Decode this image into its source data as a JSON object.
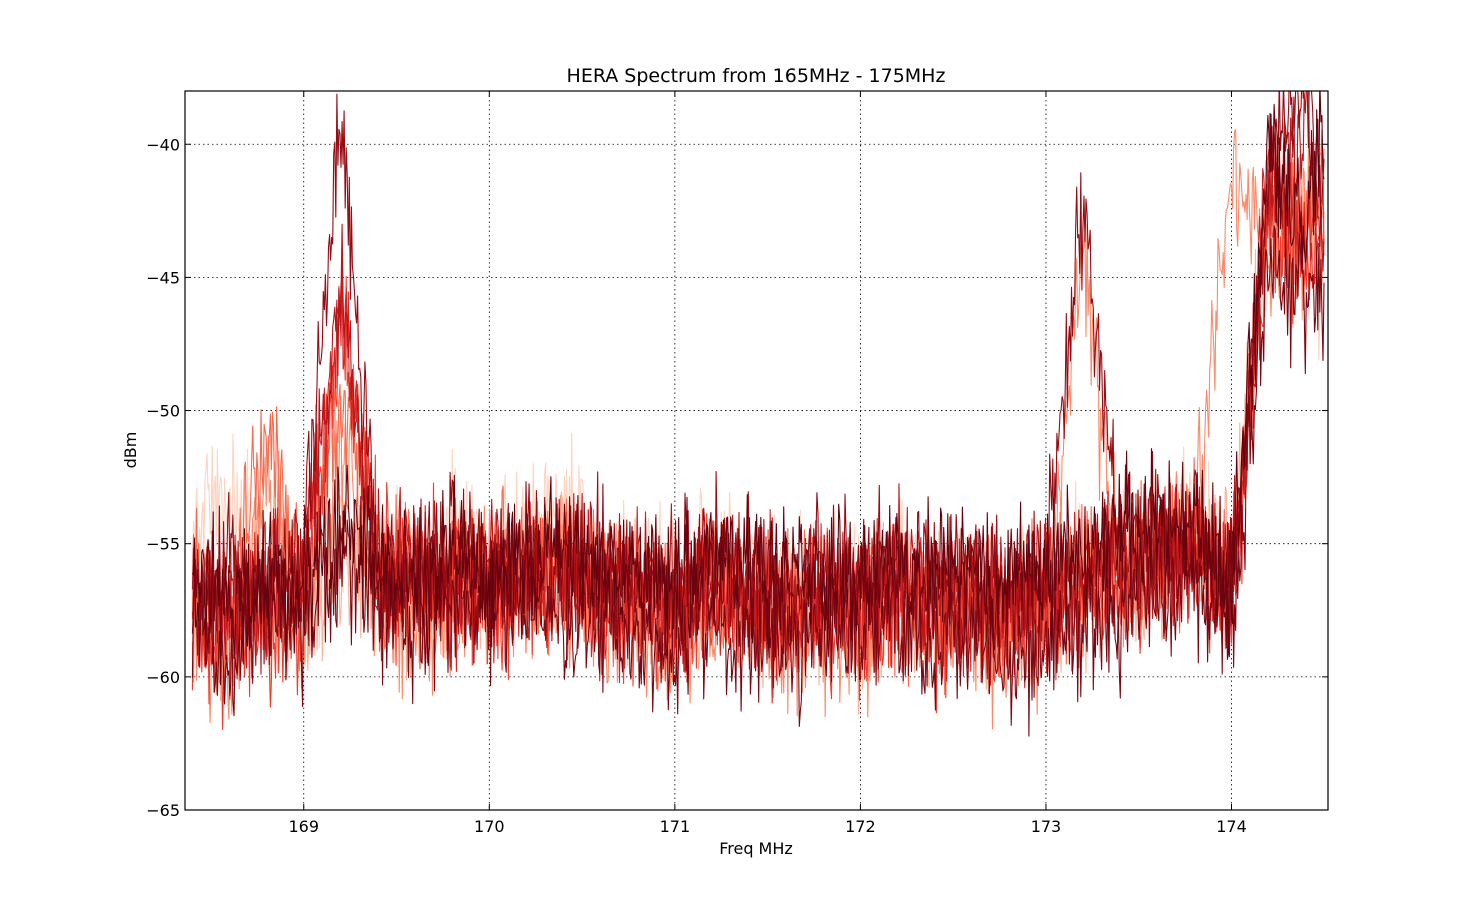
{
  "chart_data": {
    "type": "line",
    "title": "HERA Spectrum from 165MHz - 175MHz",
    "xlabel": "Freq MHz",
    "ylabel": "dBm",
    "xlim": [
      168.36,
      174.52
    ],
    "ylim": [
      -65,
      -38
    ],
    "xticks": [
      169,
      170,
      171,
      172,
      173,
      174
    ],
    "xtick_labels": [
      "169",
      "170",
      "171",
      "172",
      "173",
      "174"
    ],
    "yticks": [
      -40,
      -45,
      -50,
      -55,
      -60,
      -65
    ],
    "ytick_labels": [
      "−40",
      "−45",
      "−50",
      "−55",
      "−60",
      "−65"
    ],
    "grid": true,
    "legend": "none",
    "series_colors": [
      "#fdd4c2",
      "#fcb398",
      "#fc8a6a",
      "#f9694c",
      "#ef3c2c",
      "#d52221",
      "#b81419",
      "#970b13",
      "#7b0712",
      "#67000d"
    ],
    "series": [
      {
        "color": "#fdd4c2",
        "x": [
          168.4,
          168.6,
          168.8,
          169.0,
          169.2,
          169.4,
          169.6,
          169.8,
          170.0,
          170.2,
          170.4,
          170.6,
          170.8,
          171.0,
          171.2,
          171.4,
          171.6,
          171.8,
          172.0,
          172.2,
          172.4,
          172.6,
          172.8,
          173.0,
          173.2,
          173.4,
          173.6,
          173.8,
          174.0,
          174.2,
          174.4,
          174.5
        ],
        "y": [
          -54.5,
          -53.0,
          -56.5,
          -57.5,
          -55.0,
          -55.5,
          -56.0,
          -54.5,
          -55.5,
          -54.0,
          -53.5,
          -56.0,
          -55.5,
          -57.0,
          -55.5,
          -56.0,
          -57.0,
          -56.5,
          -57.0,
          -56.0,
          -57.0,
          -56.5,
          -57.0,
          -56.5,
          -56.0,
          -55.5,
          -55.0,
          -54.0,
          -56.0,
          -44.0,
          -43.0,
          -46.0
        ]
      },
      {
        "color": "#fcb398",
        "x": [
          168.4,
          168.6,
          168.8,
          169.0,
          169.2,
          169.4,
          169.6,
          169.8,
          170.0,
          170.2,
          170.4,
          170.6,
          170.8,
          171.0,
          171.2,
          171.4,
          171.6,
          171.8,
          172.0,
          172.2,
          172.4,
          172.6,
          172.8,
          173.0,
          173.2,
          173.4,
          173.6,
          173.8,
          174.0,
          174.2,
          174.4,
          174.5
        ],
        "y": [
          -57.0,
          -58.5,
          -57.5,
          -58.0,
          -55.5,
          -56.0,
          -57.5,
          -56.5,
          -57.0,
          -56.0,
          -55.5,
          -56.5,
          -57.5,
          -58.0,
          -57.0,
          -57.5,
          -58.0,
          -57.5,
          -58.0,
          -57.0,
          -58.0,
          -57.5,
          -58.5,
          -57.5,
          -57.0,
          -56.5,
          -56.0,
          -55.0,
          -55.5,
          -42.5,
          -44.5,
          -41.0
        ]
      },
      {
        "color": "#fc8a6a",
        "x": [
          168.4,
          168.6,
          168.8,
          169.0,
          169.2,
          169.4,
          169.6,
          169.8,
          170.0,
          170.2,
          170.4,
          170.6,
          170.8,
          171.0,
          171.2,
          171.4,
          171.6,
          171.8,
          172.0,
          172.2,
          172.4,
          172.6,
          172.8,
          173.0,
          173.2,
          173.4,
          173.6,
          173.8,
          174.0,
          174.2,
          174.4,
          174.5
        ],
        "y": [
          -58.0,
          -60.0,
          -52.5,
          -58.5,
          -51.5,
          -57.0,
          -58.0,
          -57.5,
          -56.0,
          -57.0,
          -56.5,
          -57.0,
          -58.0,
          -58.5,
          -57.5,
          -58.0,
          -58.5,
          -58.0,
          -58.5,
          -57.5,
          -58.5,
          -58.0,
          -59.0,
          -58.0,
          -44.0,
          -57.0,
          -55.5,
          -54.5,
          -40.5,
          -45.0,
          -42.0,
          -44.0
        ]
      },
      {
        "color": "#f9694c",
        "x": [
          168.4,
          168.6,
          168.8,
          169.0,
          169.2,
          169.4,
          169.6,
          169.8,
          170.0,
          170.2,
          170.4,
          170.6,
          170.8,
          171.0,
          171.2,
          171.4,
          171.6,
          171.8,
          172.0,
          172.2,
          172.4,
          172.6,
          172.8,
          173.0,
          173.2,
          173.4,
          173.6,
          173.8,
          174.0,
          174.2,
          174.4,
          174.5
        ],
        "y": [
          -56.5,
          -57.5,
          -51.0,
          -57.0,
          -49.0,
          -56.5,
          -55.5,
          -56.0,
          -55.0,
          -55.5,
          -56.0,
          -56.5,
          -57.0,
          -57.5,
          -56.5,
          -57.0,
          -57.5,
          -57.0,
          -57.5,
          -56.5,
          -57.5,
          -57.0,
          -57.5,
          -57.0,
          -56.5,
          -56.0,
          -55.5,
          -55.0,
          -56.5,
          -41.5,
          -43.0,
          -40.0
        ]
      },
      {
        "color": "#ef3c2c",
        "x": [
          168.4,
          168.6,
          168.8,
          169.0,
          169.2,
          169.4,
          169.6,
          169.8,
          170.0,
          170.2,
          170.4,
          170.6,
          170.8,
          171.0,
          171.2,
          171.4,
          171.6,
          171.8,
          172.0,
          172.2,
          172.4,
          172.6,
          172.8,
          173.0,
          173.2,
          173.4,
          173.6,
          173.8,
          174.0,
          174.2,
          174.4,
          174.5
        ],
        "y": [
          -58.5,
          -59.0,
          -58.5,
          -57.5,
          -47.5,
          -55.5,
          -57.0,
          -56.0,
          -57.0,
          -56.5,
          -56.0,
          -57.0,
          -57.5,
          -58.0,
          -57.0,
          -57.5,
          -58.0,
          -57.5,
          -58.0,
          -57.0,
          -58.0,
          -57.5,
          -58.0,
          -57.5,
          -57.0,
          -56.5,
          -56.0,
          -55.5,
          -57.0,
          -43.0,
          -45.0,
          -42.0
        ]
      },
      {
        "color": "#d52221",
        "x": [
          168.4,
          168.6,
          168.8,
          169.0,
          169.2,
          169.4,
          169.6,
          169.8,
          170.0,
          170.2,
          170.4,
          170.6,
          170.8,
          171.0,
          171.2,
          171.4,
          171.6,
          171.8,
          172.0,
          172.2,
          172.4,
          172.6,
          172.8,
          173.0,
          173.2,
          173.4,
          173.6,
          173.8,
          174.0,
          174.2,
          174.4,
          174.5
        ],
        "y": [
          -57.5,
          -58.0,
          -56.0,
          -56.5,
          -46.0,
          -57.0,
          -56.0,
          -57.0,
          -56.5,
          -57.0,
          -56.5,
          -57.5,
          -57.0,
          -57.5,
          -56.5,
          -57.0,
          -57.5,
          -57.0,
          -57.5,
          -56.5,
          -57.5,
          -57.0,
          -57.5,
          -57.0,
          -56.5,
          -56.0,
          -55.5,
          -55.5,
          -56.0,
          -41.0,
          -44.0,
          -43.5
        ]
      },
      {
        "color": "#b81419",
        "x": [
          168.4,
          168.6,
          168.8,
          169.0,
          169.2,
          169.4,
          169.6,
          169.8,
          170.0,
          170.2,
          170.4,
          170.6,
          170.8,
          171.0,
          171.2,
          171.4,
          171.6,
          171.8,
          172.0,
          172.2,
          172.4,
          172.6,
          172.8,
          173.0,
          173.2,
          173.4,
          173.6,
          173.8,
          174.0,
          174.2,
          174.4,
          174.5
        ],
        "y": [
          -56.0,
          -57.0,
          -57.5,
          -56.0,
          -45.5,
          -56.0,
          -55.5,
          -56.5,
          -55.5,
          -56.0,
          -55.5,
          -56.5,
          -56.0,
          -57.0,
          -56.0,
          -56.5,
          -57.0,
          -56.5,
          -57.0,
          -56.0,
          -57.0,
          -56.5,
          -57.0,
          -56.5,
          -56.0,
          -55.5,
          -55.0,
          -55.0,
          -57.0,
          -42.0,
          -39.0,
          -44.0
        ]
      },
      {
        "color": "#970b13",
        "x": [
          168.4,
          168.6,
          168.8,
          169.0,
          169.2,
          169.4,
          169.6,
          169.8,
          170.0,
          170.2,
          170.4,
          170.6,
          170.8,
          171.0,
          171.2,
          171.4,
          171.6,
          171.8,
          172.0,
          172.2,
          172.4,
          172.6,
          172.8,
          173.0,
          173.2,
          173.4,
          173.6,
          173.8,
          174.0,
          174.2,
          174.4,
          174.5
        ],
        "y": [
          -57.0,
          -56.0,
          -57.0,
          -55.5,
          -39.5,
          -56.5,
          -56.0,
          -55.5,
          -56.0,
          -55.0,
          -56.0,
          -55.5,
          -56.5,
          -56.5,
          -55.5,
          -56.0,
          -56.5,
          -56.0,
          -56.5,
          -55.5,
          -56.5,
          -56.0,
          -56.5,
          -56.0,
          -42.5,
          -55.0,
          -54.5,
          -54.5,
          -56.5,
          -40.0,
          -38.0,
          -42.0
        ]
      },
      {
        "color": "#7b0712",
        "x": [
          168.4,
          168.6,
          168.8,
          169.0,
          169.2,
          169.4,
          169.6,
          169.8,
          170.0,
          170.2,
          170.4,
          170.6,
          170.8,
          171.0,
          171.2,
          171.4,
          171.6,
          171.8,
          172.0,
          172.2,
          172.4,
          172.6,
          172.8,
          173.0,
          173.2,
          173.4,
          173.6,
          173.8,
          174.0,
          174.2,
          174.4,
          174.5
        ],
        "y": [
          -58.0,
          -59.5,
          -57.0,
          -58.0,
          -55.5,
          -57.5,
          -58.0,
          -57.0,
          -57.5,
          -57.0,
          -57.5,
          -58.0,
          -58.5,
          -59.0,
          -58.0,
          -58.5,
          -59.0,
          -58.5,
          -59.0,
          -58.0,
          -59.0,
          -58.5,
          -59.0,
          -58.5,
          -58.0,
          -57.5,
          -57.0,
          -56.5,
          -57.5,
          -44.0,
          -46.0,
          -45.0
        ]
      },
      {
        "color": "#67000d",
        "x": [
          168.4,
          168.6,
          168.8,
          169.0,
          169.2,
          169.4,
          169.6,
          169.8,
          170.0,
          170.2,
          170.4,
          170.6,
          170.8,
          171.0,
          171.2,
          171.4,
          171.6,
          171.8,
          172.0,
          172.2,
          172.4,
          172.6,
          172.8,
          173.0,
          173.2,
          173.4,
          173.6,
          173.8,
          174.0,
          174.2,
          174.4,
          174.5
        ],
        "y": [
          -56.0,
          -57.5,
          -56.0,
          -56.5,
          -54.0,
          -55.5,
          -56.5,
          -55.5,
          -56.5,
          -55.5,
          -55.0,
          -56.0,
          -56.5,
          -57.0,
          -55.5,
          -56.0,
          -56.5,
          -56.0,
          -56.5,
          -55.5,
          -56.5,
          -56.0,
          -56.5,
          -56.0,
          -55.5,
          -55.0,
          -54.5,
          -54.0,
          -57.0,
          -41.0,
          -43.0,
          -39.5
        ]
      }
    ]
  }
}
